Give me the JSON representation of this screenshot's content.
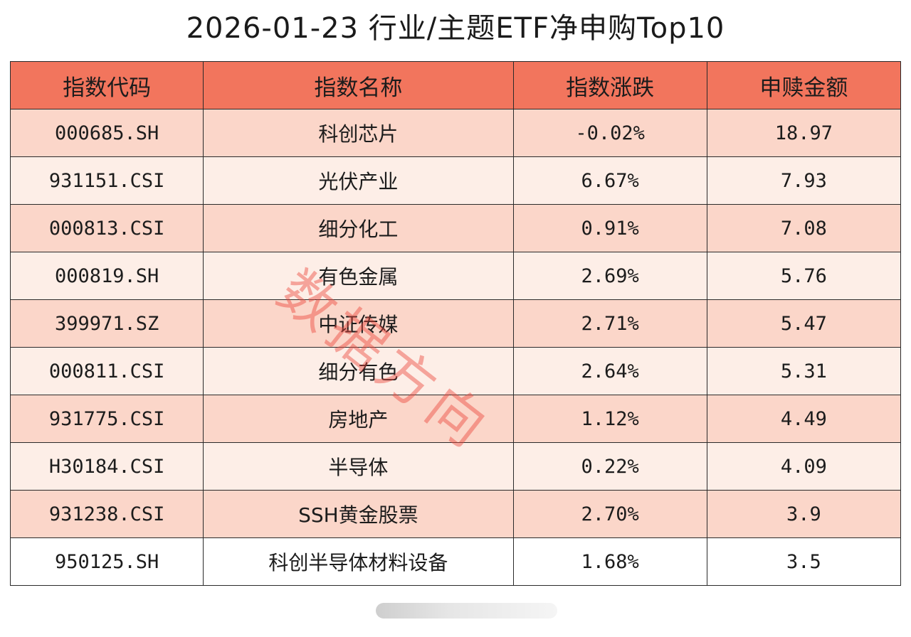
{
  "title": "2026-01-23 行业/主题ETF净申购Top10",
  "table": {
    "headers": [
      "指数代码",
      "指数名称",
      "指数涨跌",
      "申赎金额"
    ],
    "rows": [
      {
        "code": "000685.SH",
        "name": "科创芯片",
        "change": "-0.02%",
        "amount": "18.97"
      },
      {
        "code": "931151.CSI",
        "name": "光伏产业",
        "change": "6.67%",
        "amount": "7.93"
      },
      {
        "code": "000813.CSI",
        "name": "细分化工",
        "change": "0.91%",
        "amount": "7.08"
      },
      {
        "code": "000819.SH",
        "name": "有色金属",
        "change": "2.69%",
        "amount": "5.76"
      },
      {
        "code": "399971.SZ",
        "name": "中证传媒",
        "change": "2.71%",
        "amount": "5.47"
      },
      {
        "code": "000811.CSI",
        "name": "细分有色",
        "change": "2.64%",
        "amount": "5.31"
      },
      {
        "code": "931775.CSI",
        "name": "房地产",
        "change": "1.12%",
        "amount": "4.49"
      },
      {
        "code": "H30184.CSI",
        "name": "半导体",
        "change": "0.22%",
        "amount": "4.09"
      },
      {
        "code": "931238.CSI",
        "name": "SSH黄金股票",
        "change": "2.70%",
        "amount": "3.9"
      },
      {
        "code": "950125.SH",
        "name": "科创半导体材料设备",
        "change": "1.68%",
        "amount": "3.5"
      }
    ]
  },
  "watermark": "数据方向",
  "colors": {
    "header_bg": "#f2755d",
    "row_odd_bg": "#fbd6c9",
    "row_even_bg": "#fdeee7",
    "watermark": "#ec463c"
  }
}
